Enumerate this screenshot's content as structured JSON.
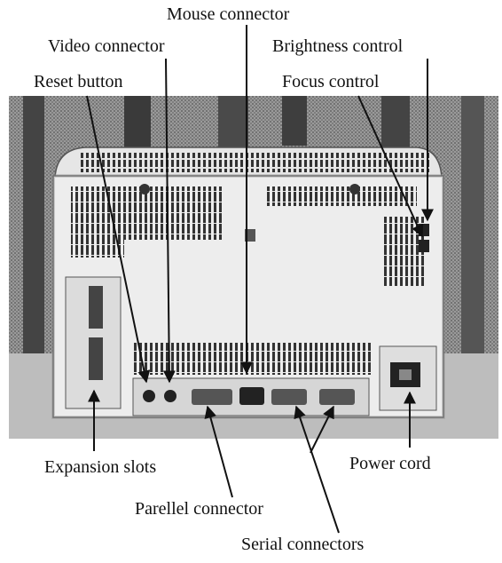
{
  "labels": {
    "mouse_connector": "Mouse connector",
    "video_connector": "Video connector",
    "brightness_control": "Brightness control",
    "reset_button": "Reset button",
    "focus_control": "Focus control",
    "expansion_slots": "Expansion slots",
    "power_cord": "Power cord",
    "parallel_connector": "Parellel connector",
    "serial_connectors": "Serial connectors"
  },
  "colors": {
    "ink": "#111111",
    "casing": "#ededed",
    "photo_bg": "#8a8a8a"
  }
}
